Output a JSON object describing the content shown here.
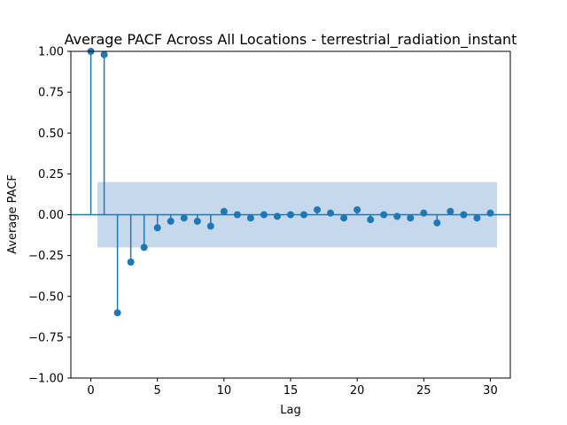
{
  "chart_data": {
    "type": "scatter",
    "title": "Average PACF Across All Locations - terrestrial_radiation_instant",
    "xlabel": "Lag",
    "ylabel": "Average PACF",
    "xlim": [
      -1.5,
      31.5
    ],
    "ylim": [
      -1.0,
      1.0
    ],
    "xticks": [
      0,
      5,
      10,
      15,
      20,
      25,
      30
    ],
    "yticks": [
      "1.00",
      "0.75",
      "0.50",
      "0.25",
      "0.00",
      "−0.25",
      "−0.50",
      "−0.75",
      "−1.00"
    ],
    "confidence_band": [
      -0.2,
      0.2
    ],
    "color": "#1f77b4",
    "band_color": "#c6d9ec",
    "x": [
      0,
      1,
      2,
      3,
      4,
      5,
      6,
      7,
      8,
      9,
      10,
      11,
      12,
      13,
      14,
      15,
      16,
      17,
      18,
      19,
      20,
      21,
      22,
      23,
      24,
      25,
      26,
      27,
      28,
      29,
      30
    ],
    "values": [
      1.0,
      0.98,
      -0.6,
      -0.29,
      -0.2,
      -0.08,
      -0.04,
      -0.02,
      -0.04,
      -0.07,
      0.02,
      0.0,
      -0.02,
      0.0,
      -0.01,
      0.0,
      0.0,
      0.03,
      0.01,
      -0.02,
      0.03,
      -0.03,
      0.0,
      -0.01,
      -0.02,
      0.01,
      -0.05,
      0.02,
      0.0,
      -0.02,
      0.01
    ]
  }
}
